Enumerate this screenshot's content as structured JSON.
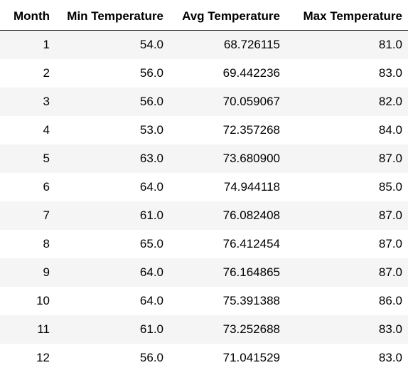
{
  "table": {
    "columns": [
      "Month",
      "Min Temperature",
      "Avg Temperature",
      "Max Temperature"
    ],
    "rows": [
      [
        "1",
        "54.0",
        "68.726115",
        "81.0"
      ],
      [
        "2",
        "56.0",
        "69.442236",
        "83.0"
      ],
      [
        "3",
        "56.0",
        "70.059067",
        "82.0"
      ],
      [
        "4",
        "53.0",
        "72.357268",
        "84.0"
      ],
      [
        "5",
        "63.0",
        "73.680900",
        "87.0"
      ],
      [
        "6",
        "64.0",
        "74.944118",
        "85.0"
      ],
      [
        "7",
        "61.0",
        "76.082408",
        "87.0"
      ],
      [
        "8",
        "65.0",
        "76.412454",
        "87.0"
      ],
      [
        "9",
        "64.0",
        "76.164865",
        "87.0"
      ],
      [
        "10",
        "64.0",
        "75.391388",
        "86.0"
      ],
      [
        "11",
        "61.0",
        "73.252688",
        "83.0"
      ],
      [
        "12",
        "56.0",
        "71.041529",
        "83.0"
      ]
    ]
  }
}
